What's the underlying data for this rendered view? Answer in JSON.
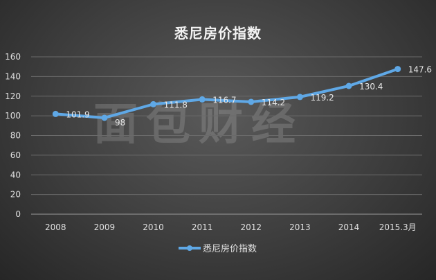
{
  "chart_data": {
    "type": "line",
    "title": "悉尼房价指数",
    "categories": [
      "2008",
      "2009",
      "2010",
      "2011",
      "2012",
      "2013",
      "2014",
      "2015.3月"
    ],
    "series": [
      {
        "name": "悉尼房价指数",
        "values": [
          101.9,
          98,
          111.8,
          116.7,
          114.2,
          119.2,
          130.4,
          147.6
        ],
        "color": "#5fa8e6"
      }
    ],
    "ylim": [
      0,
      160
    ],
    "yticks": [
      0,
      20,
      40,
      60,
      80,
      100,
      120,
      140,
      160
    ],
    "grid": true,
    "legend": "bottom",
    "data_labels": true
  },
  "watermark": "面包财经"
}
